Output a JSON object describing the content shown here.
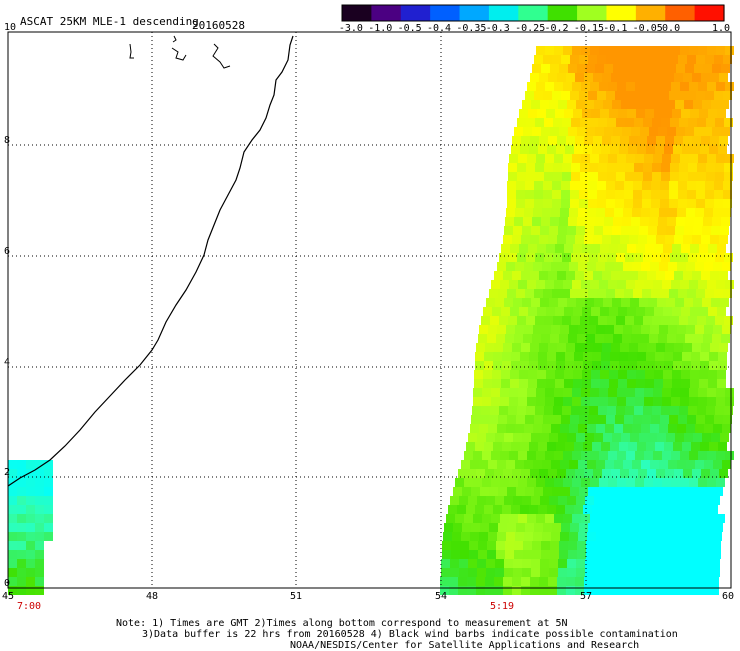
{
  "header": {
    "title": "ASCAT 25KM MLE-1 descending",
    "date": "20160528"
  },
  "colorbar": {
    "ticks": [
      "-3.0",
      "-1.0",
      "-0.5",
      "-0.4",
      "-0.35",
      "-0.3",
      "-0.25",
      "-0.2",
      "-0.15",
      "-0.1",
      "-0.05",
      "0.0",
      "1.0"
    ],
    "colors": [
      "#1a0020",
      "#4b0082",
      "#2020d0",
      "#0060ff",
      "#00a8ff",
      "#00eeee",
      "#30ff90",
      "#40e000",
      "#a0ff20",
      "#ffff00",
      "#ffb000",
      "#ff6000",
      "#ff1000"
    ]
  },
  "axes": {
    "x_ticks": [
      "45",
      "48",
      "51",
      "54",
      "57",
      "60"
    ],
    "y_ticks": [
      "0",
      "2",
      "4",
      "6",
      "8",
      "10"
    ],
    "time_labels": [
      "7:00",
      "5:19"
    ]
  },
  "notes": {
    "line1": "Note: 1) Times are GMT 2)Times along bottom correspond to measurement at 5N",
    "line2": "3)Data buffer is 22 hrs from 20160528 4) Black wind barbs indicate possible contamination",
    "line3": "NOAA/NESDIS/Center for Satellite Applications and Research"
  }
}
